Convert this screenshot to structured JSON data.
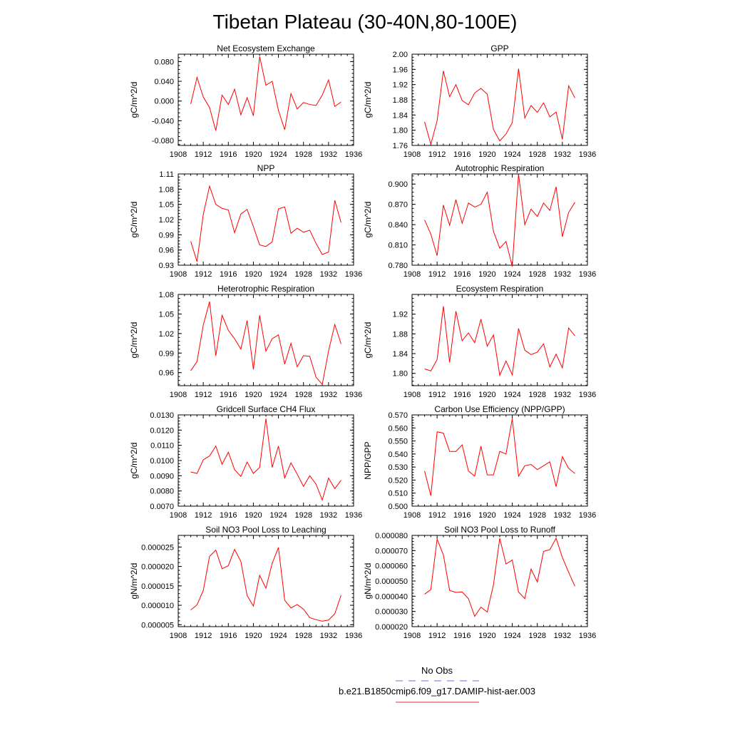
{
  "figure": {
    "title": "Tibetan Plateau (30-40N,80-100E)",
    "legend": [
      {
        "label": "No Obs",
        "color": "#6b6bd6",
        "style": "dashed"
      },
      {
        "label": "b.e21.B1850cmip6.f09_g17.DAMIP-hist-aer.003",
        "color": "#e03030",
        "style": "solid"
      }
    ]
  },
  "chart_data": [
    {
      "type": "line",
      "title": "Net Ecosystem Exchange",
      "ylabel": "gC/m^2/d",
      "xlim": [
        1908,
        1936
      ],
      "ylim": [
        -0.09,
        0.095
      ],
      "xticks": [
        1908,
        1912,
        1916,
        1920,
        1924,
        1928,
        1932,
        1936
      ],
      "yticks": [
        "-0.080",
        "-0.040",
        "0.000",
        "0.040",
        "0.080"
      ],
      "x": [
        1910,
        1911,
        1912,
        1913,
        1914,
        1915,
        1916,
        1917,
        1918,
        1919,
        1920,
        1921,
        1922,
        1923,
        1924,
        1925,
        1926,
        1927,
        1928,
        1929,
        1930,
        1931,
        1932,
        1933,
        1934
      ],
      "series": [
        {
          "color": "#ff0000",
          "values": [
            -0.006,
            0.048,
            0.008,
            -0.013,
            -0.06,
            0.012,
            -0.007,
            0.024,
            -0.028,
            0.007,
            -0.03,
            0.09,
            0.032,
            0.04,
            -0.019,
            -0.058,
            0.015,
            -0.016,
            -0.003,
            -0.007,
            -0.009,
            0.012,
            0.043,
            -0.011,
            -0.002
          ]
        }
      ]
    },
    {
      "type": "line",
      "title": "GPP",
      "ylabel": "gC/m^2/d",
      "xlim": [
        1908,
        1936
      ],
      "ylim": [
        1.76,
        2.0
      ],
      "xticks": [
        1908,
        1912,
        1916,
        1920,
        1924,
        1928,
        1932,
        1936
      ],
      "yticks": [
        "1.76",
        "1.80",
        "1.84",
        "1.88",
        "1.92",
        "1.96",
        "2.00"
      ],
      "x": [
        1910,
        1911,
        1912,
        1913,
        1914,
        1915,
        1916,
        1917,
        1918,
        1919,
        1920,
        1921,
        1922,
        1923,
        1924,
        1925,
        1926,
        1927,
        1928,
        1929,
        1930,
        1931,
        1932,
        1933,
        1934
      ],
      "series": [
        {
          "color": "#ff0000",
          "values": [
            1.822,
            1.763,
            1.825,
            1.956,
            1.888,
            1.92,
            1.878,
            1.867,
            1.898,
            1.91,
            1.895,
            1.802,
            1.772,
            1.79,
            1.82,
            1.962,
            1.832,
            1.865,
            1.847,
            1.872,
            1.835,
            1.848,
            1.776,
            1.917,
            1.885
          ]
        }
      ]
    },
    {
      "type": "line",
      "title": "NPP",
      "ylabel": "gC/m^2/d",
      "xlim": [
        1908,
        1936
      ],
      "ylim": [
        0.93,
        1.11
      ],
      "xticks": [
        1908,
        1912,
        1916,
        1920,
        1924,
        1928,
        1932,
        1936
      ],
      "yticks": [
        "0.93",
        "0.96",
        "0.99",
        "1.02",
        "1.05",
        "1.08",
        "1.11"
      ],
      "x": [
        1910,
        1911,
        1912,
        1913,
        1914,
        1915,
        1916,
        1917,
        1918,
        1919,
        1920,
        1921,
        1922,
        1923,
        1924,
        1925,
        1926,
        1927,
        1928,
        1929,
        1930,
        1931,
        1932,
        1933,
        1934
      ],
      "series": [
        {
          "color": "#ff0000",
          "values": [
            0.977,
            0.937,
            1.03,
            1.086,
            1.05,
            1.042,
            1.039,
            0.994,
            1.031,
            1.04,
            1.006,
            0.97,
            0.967,
            0.976,
            1.041,
            1.045,
            0.993,
            1.003,
            0.995,
            0.999,
            0.973,
            0.951,
            0.956,
            1.058,
            1.014
          ]
        }
      ]
    },
    {
      "type": "line",
      "title": "Autotrophic Respiration",
      "ylabel": "gC/m^2/d",
      "xlim": [
        1908,
        1936
      ],
      "ylim": [
        0.78,
        0.915
      ],
      "xticks": [
        1908,
        1912,
        1916,
        1920,
        1924,
        1928,
        1932,
        1936
      ],
      "yticks": [
        "0.780",
        "0.810",
        "0.840",
        "0.870",
        "0.900"
      ],
      "x": [
        1910,
        1911,
        1912,
        1913,
        1914,
        1915,
        1916,
        1917,
        1918,
        1919,
        1920,
        1921,
        1922,
        1923,
        1924,
        1925,
        1926,
        1927,
        1928,
        1929,
        1930,
        1931,
        1932,
        1933,
        1934
      ],
      "series": [
        {
          "color": "#ff0000",
          "values": [
            0.847,
            0.826,
            0.794,
            0.869,
            0.839,
            0.877,
            0.842,
            0.872,
            0.866,
            0.87,
            0.888,
            0.83,
            0.805,
            0.815,
            0.778,
            0.915,
            0.84,
            0.863,
            0.852,
            0.872,
            0.861,
            0.896,
            0.822,
            0.858,
            0.873
          ]
        }
      ]
    },
    {
      "type": "line",
      "title": "Heterotrophic Respiration",
      "ylabel": "gC/m^2/d",
      "xlim": [
        1908,
        1936
      ],
      "ylim": [
        0.94,
        1.08
      ],
      "xticks": [
        1908,
        1912,
        1916,
        1920,
        1924,
        1928,
        1932,
        1936
      ],
      "yticks": [
        "0.96",
        "0.99",
        "1.02",
        "1.05",
        "1.08"
      ],
      "x": [
        1910,
        1911,
        1912,
        1913,
        1914,
        1915,
        1916,
        1917,
        1918,
        1919,
        1920,
        1921,
        1922,
        1923,
        1924,
        1925,
        1926,
        1927,
        1928,
        1929,
        1930,
        1931,
        1932,
        1933,
        1934
      ],
      "series": [
        {
          "color": "#ff0000",
          "values": [
            0.963,
            0.977,
            1.033,
            1.069,
            0.986,
            1.048,
            1.025,
            1.012,
            0.996,
            1.04,
            0.965,
            1.048,
            0.993,
            1.012,
            1.018,
            0.973,
            1.005,
            0.969,
            0.986,
            0.985,
            0.953,
            0.942,
            0.993,
            1.034,
            1.004
          ]
        }
      ]
    },
    {
      "type": "line",
      "title": "Ecosystem Respiration",
      "ylabel": "gC/m^2/d",
      "xlim": [
        1908,
        1936
      ],
      "ylim": [
        1.775,
        1.96
      ],
      "xticks": [
        1908,
        1912,
        1916,
        1920,
        1924,
        1928,
        1932,
        1936
      ],
      "yticks": [
        "1.80",
        "1.84",
        "1.88",
        "1.92"
      ],
      "x": [
        1910,
        1911,
        1912,
        1913,
        1914,
        1915,
        1916,
        1917,
        1918,
        1919,
        1920,
        1921,
        1922,
        1923,
        1924,
        1925,
        1926,
        1927,
        1928,
        1929,
        1930,
        1931,
        1932,
        1933,
        1934
      ],
      "series": [
        {
          "color": "#ff0000",
          "values": [
            1.809,
            1.805,
            1.828,
            1.936,
            1.822,
            1.926,
            1.866,
            1.882,
            1.862,
            1.91,
            1.855,
            1.878,
            1.796,
            1.825,
            1.797,
            1.891,
            1.847,
            1.838,
            1.843,
            1.86,
            1.813,
            1.839,
            1.811,
            1.892,
            1.876
          ]
        }
      ]
    },
    {
      "type": "line",
      "title": "Gridcell Surface CH4 Flux",
      "ylabel": "gC/m^2/d",
      "xlim": [
        1908,
        1936
      ],
      "ylim": [
        0.007,
        0.013
      ],
      "xticks": [
        1908,
        1912,
        1916,
        1920,
        1924,
        1928,
        1932,
        1936
      ],
      "yticks": [
        "0.0070",
        "0.0080",
        "0.0090",
        "0.0100",
        "0.0110",
        "0.0120",
        "0.0130"
      ],
      "x": [
        1910,
        1911,
        1912,
        1913,
        1914,
        1915,
        1916,
        1917,
        1918,
        1919,
        1920,
        1921,
        1922,
        1923,
        1924,
        1925,
        1926,
        1927,
        1928,
        1929,
        1930,
        1931,
        1932,
        1933,
        1934
      ],
      "series": [
        {
          "color": "#ff0000",
          "values": [
            0.00925,
            0.00915,
            0.01005,
            0.0103,
            0.01095,
            0.00975,
            0.01055,
            0.0094,
            0.00895,
            0.0099,
            0.00915,
            0.00955,
            0.01275,
            0.00955,
            0.01095,
            0.00885,
            0.00985,
            0.0091,
            0.0083,
            0.009,
            0.00845,
            0.0074,
            0.00885,
            0.00815,
            0.0087
          ]
        }
      ]
    },
    {
      "type": "line",
      "title": "Carbon Use Efficiency (NPP/GPP)",
      "ylabel": "NPP/GPP",
      "xlim": [
        1908,
        1936
      ],
      "ylim": [
        0.5,
        0.57
      ],
      "xticks": [
        1908,
        1912,
        1916,
        1920,
        1924,
        1928,
        1932,
        1936
      ],
      "yticks": [
        "0.500",
        "0.510",
        "0.520",
        "0.530",
        "0.540",
        "0.550",
        "0.560",
        "0.570"
      ],
      "x": [
        1910,
        1911,
        1912,
        1913,
        1914,
        1915,
        1916,
        1917,
        1918,
        1919,
        1920,
        1921,
        1922,
        1923,
        1924,
        1925,
        1926,
        1927,
        1928,
        1929,
        1930,
        1931,
        1932,
        1933,
        1934
      ],
      "series": [
        {
          "color": "#ff0000",
          "values": [
            0.527,
            0.508,
            0.557,
            0.556,
            0.542,
            0.542,
            0.547,
            0.527,
            0.523,
            0.546,
            0.524,
            0.524,
            0.542,
            0.54,
            0.567,
            0.523,
            0.531,
            0.532,
            0.528,
            0.531,
            0.534,
            0.515,
            0.538,
            0.529,
            0.525
          ]
        }
      ]
    },
    {
      "type": "line",
      "title": "Soil NO3 Pool Loss to Leaching",
      "ylabel": "gN/m^2/d",
      "xlim": [
        1908,
        1936
      ],
      "ylim": [
        4.5e-06,
        2.8e-05
      ],
      "xticks": [
        1908,
        1912,
        1916,
        1920,
        1924,
        1928,
        1932,
        1936
      ],
      "yticks": [
        "0.000005",
        "0.000010",
        "0.000015",
        "0.000020",
        "0.000025"
      ],
      "x": [
        1910,
        1911,
        1912,
        1913,
        1914,
        1915,
        1916,
        1917,
        1918,
        1919,
        1920,
        1921,
        1922,
        1923,
        1924,
        1925,
        1926,
        1927,
        1928,
        1929,
        1930,
        1931,
        1932,
        1933,
        1934
      ],
      "series": [
        {
          "color": "#ff0000",
          "values": [
            8.8e-06,
            1.01e-05,
            1.38e-05,
            2.26e-05,
            2.42e-05,
            1.94e-05,
            2.02e-05,
            2.44e-05,
            2.13e-05,
            1.25e-05,
            9.8e-06,
            1.77e-05,
            1.44e-05,
            2.08e-05,
            2.49e-05,
            1.13e-05,
            9.3e-06,
            1.02e-05,
            9e-06,
            6.8e-06,
            6.3e-06,
            5.9e-06,
            6.2e-06,
            7.8e-06,
            1.26e-05
          ]
        }
      ]
    },
    {
      "type": "line",
      "title": "Soil NO3 Pool Loss to Runoff",
      "ylabel": "gN/m^2/d",
      "xlim": [
        1908,
        1936
      ],
      "ylim": [
        2e-05,
        8e-05
      ],
      "xticks": [
        1908,
        1912,
        1916,
        1920,
        1924,
        1928,
        1932,
        1936
      ],
      "yticks": [
        "0.000020",
        "0.000030",
        "0.000040",
        "0.000050",
        "0.000060",
        "0.000070",
        "0.000080"
      ],
      "x": [
        1910,
        1911,
        1912,
        1913,
        1914,
        1915,
        1916,
        1917,
        1918,
        1919,
        1920,
        1921,
        1922,
        1923,
        1924,
        1925,
        1926,
        1927,
        1928,
        1929,
        1930,
        1931,
        1932,
        1933,
        1934
      ],
      "series": [
        {
          "color": "#ff0000",
          "values": [
            4.13e-05,
            4.44e-05,
            7.75e-05,
            6.72e-05,
            4.38e-05,
            4.25e-05,
            4.28e-05,
            3.84e-05,
            2.68e-05,
            3.28e-05,
            2.96e-05,
            4.76e-05,
            7.81e-05,
            6.12e-05,
            6.38e-05,
            4.28e-05,
            3.84e-05,
            5.79e-05,
            4.94e-05,
            6.95e-05,
            7.06e-05,
            7.81e-05,
            6.55e-05,
            5.57e-05,
            4.66e-05
          ]
        }
      ]
    }
  ]
}
